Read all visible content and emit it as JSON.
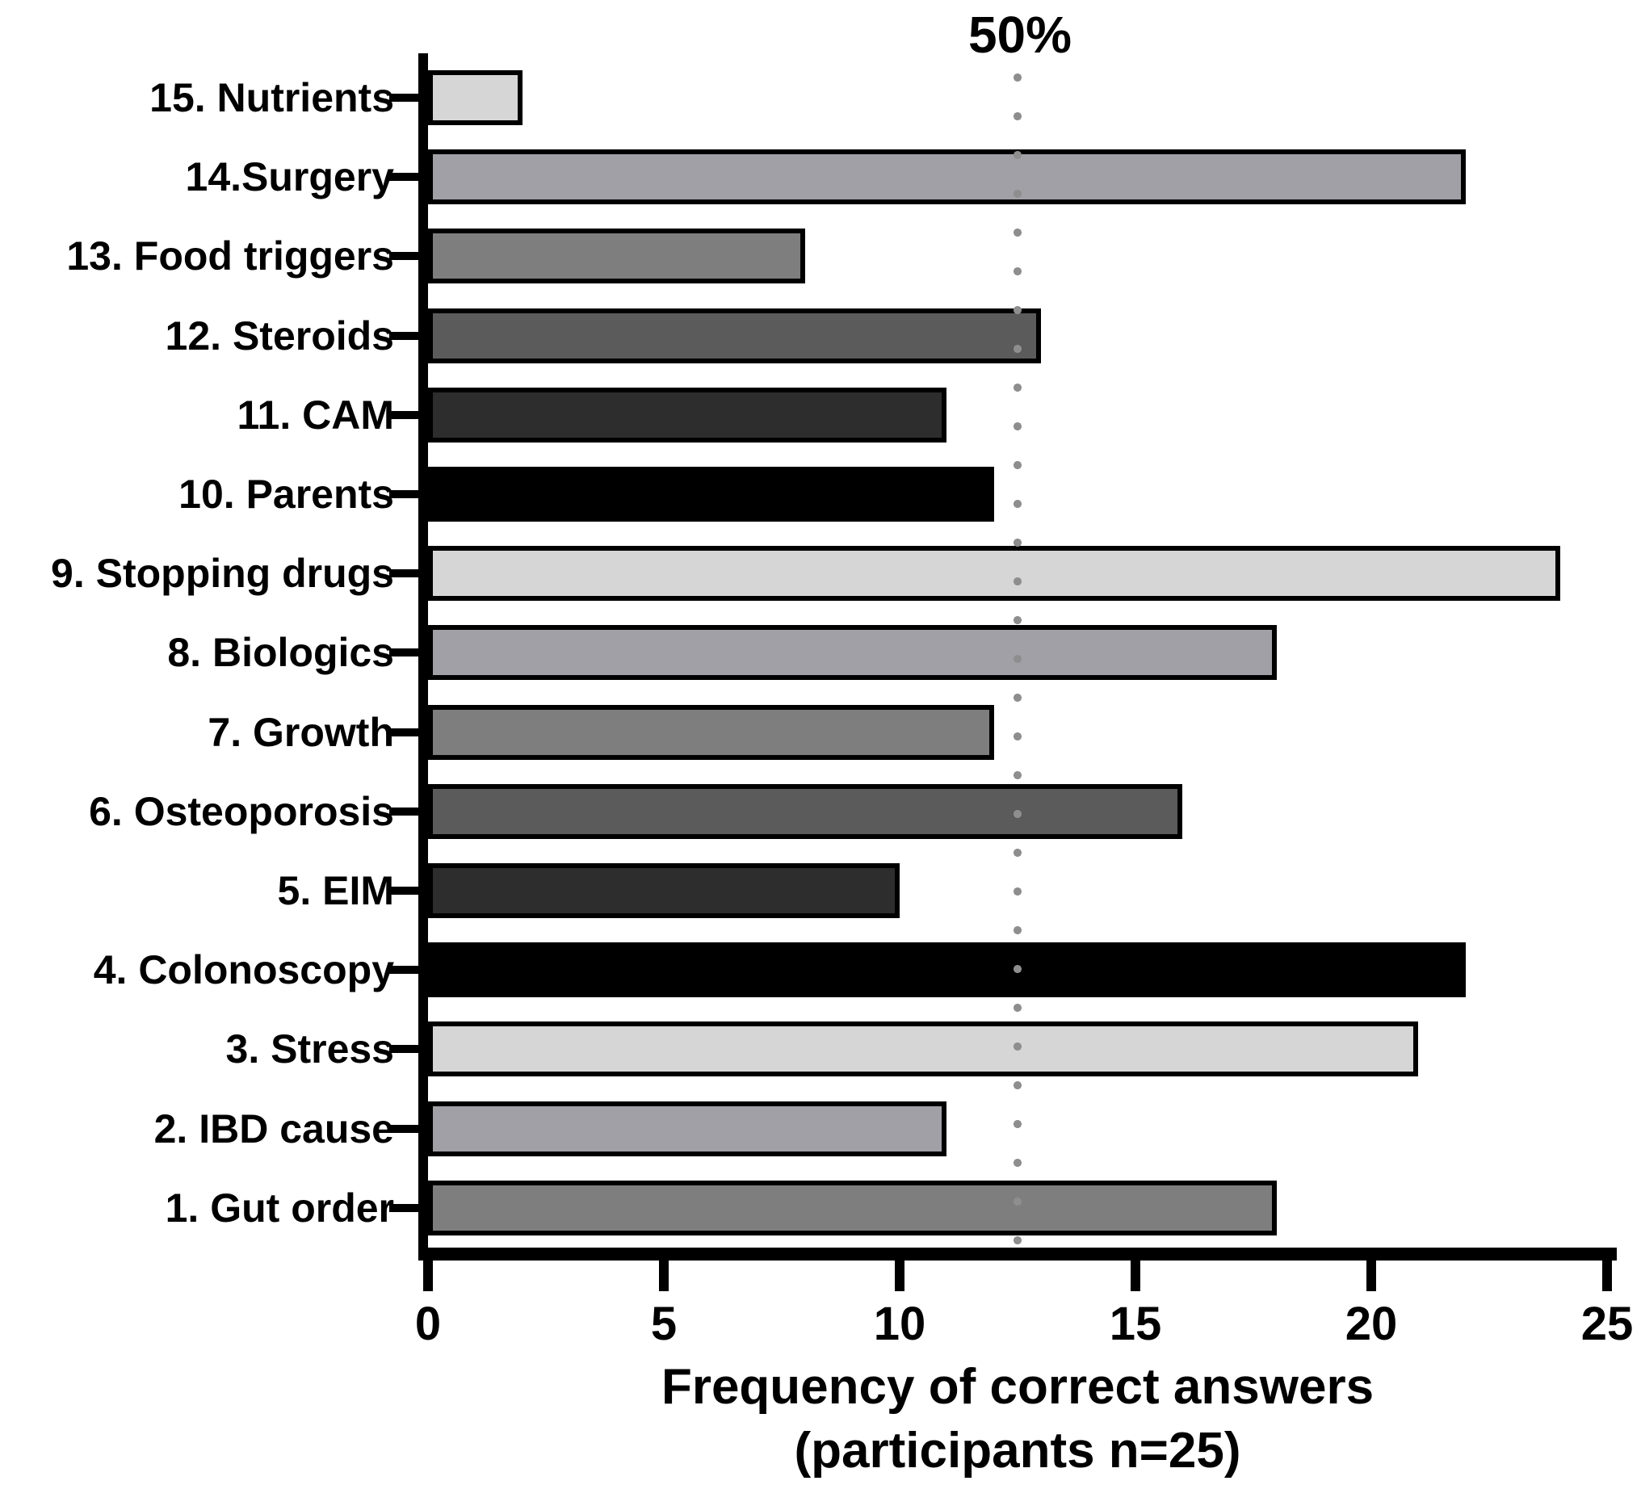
{
  "chart_data": {
    "type": "bar",
    "orientation": "horizontal",
    "categories": [
      "15. Nutrients",
      "14.Surgery",
      "13. Food triggers",
      "12. Steroids",
      "11. CAM",
      "10. Parents",
      "9. Stopping drugs",
      "8. Biologics",
      "7. Growth",
      "6. Osteoporosis",
      "5. EIM",
      "4. Colonoscopy",
      "3. Stress",
      "2. IBD cause",
      "1. Gut order"
    ],
    "values": [
      2,
      22,
      8,
      13,
      11,
      12,
      24,
      18,
      12,
      16,
      10,
      22,
      21,
      11,
      18
    ],
    "bar_colors": [
      "#d6d6d6",
      "#a0a0a6",
      "#7e7e7e",
      "#5b5b5b",
      "#2d2d2d",
      "#000000",
      "#d6d6d6",
      "#a0a0a6",
      "#7e7e7e",
      "#5b5b5b",
      "#2d2d2d",
      "#000000",
      "#d6d6d6",
      "#a0a0a6",
      "#7e7e7e"
    ],
    "xlabel_line1": "Frequency of correct answers",
    "xlabel_line2": "(participants n=25)",
    "ylabel": "",
    "title": "",
    "xlim": [
      0,
      25
    ],
    "xticks": [
      "0",
      "5",
      "10",
      "15",
      "20",
      "25"
    ],
    "xtick_values": [
      0,
      5,
      10,
      15,
      20,
      25
    ],
    "grid": false,
    "legend_position": "none",
    "reference_line": {
      "value": 12.5,
      "label": "50%",
      "color": "#8e8e8e",
      "style": "dotted"
    },
    "axis_color": "#000000",
    "bar_border_color": "#000000"
  }
}
